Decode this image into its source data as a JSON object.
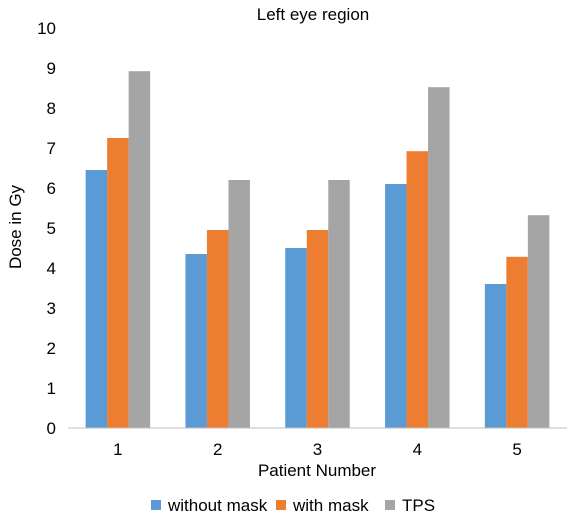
{
  "chart_data": {
    "type": "bar",
    "title": "Left eye region",
    "xlabel": "Patient Number",
    "ylabel": "Dose in Gy",
    "ylim": [
      0,
      10
    ],
    "yticks": [
      "0",
      "1",
      "2",
      "3",
      "4",
      "5",
      "6",
      "7",
      "8",
      "9",
      "10"
    ],
    "categories": [
      "1",
      "2",
      "3",
      "4",
      "5"
    ],
    "series": [
      {
        "name": "without mask",
        "color": "#5b9bd5",
        "values": [
          6.45,
          4.35,
          4.5,
          6.1,
          3.6
        ]
      },
      {
        "name": "with mask",
        "color": "#ed7d31",
        "values": [
          7.25,
          4.95,
          4.95,
          6.92,
          4.28
        ]
      },
      {
        "name": "TPS",
        "color": "#a5a5a5",
        "values": [
          8.92,
          6.2,
          6.2,
          8.52,
          5.32
        ]
      }
    ],
    "grid": false,
    "legend_position": "bottom"
  }
}
